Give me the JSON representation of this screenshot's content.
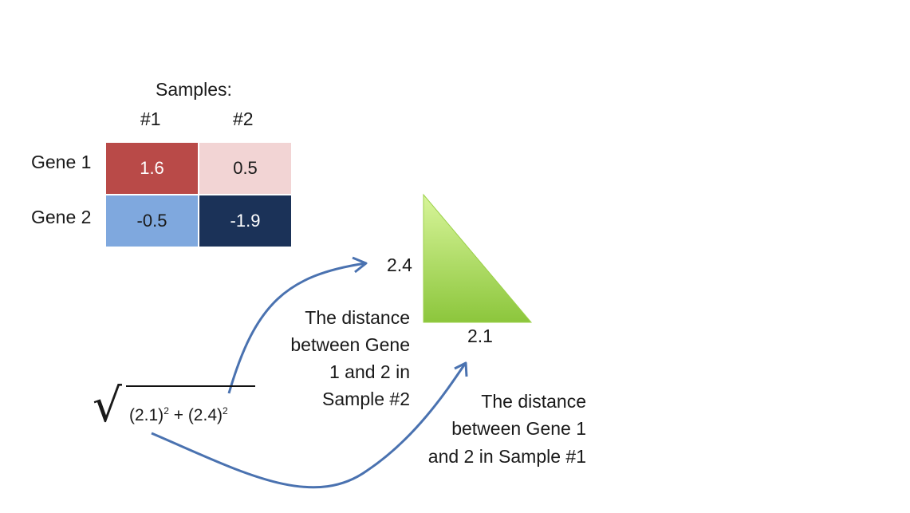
{
  "table": {
    "samples_label": "Samples:",
    "columns": [
      "#1",
      "#2"
    ],
    "rows": [
      {
        "label": "Gene 1",
        "values": [
          "1.6",
          "0.5"
        ]
      },
      {
        "label": "Gene 2",
        "values": [
          "-0.5",
          "-1.9"
        ]
      }
    ],
    "cell_colors": [
      [
        "#b94a48",
        "#f2d4d4"
      ],
      [
        "#7fa8de",
        "#1b3258"
      ]
    ]
  },
  "triangle": {
    "vertical_side_label": "2.4",
    "horizontal_side_label": "2.1",
    "fill_top": "#d8f59a",
    "fill_bottom": "#8cc63c"
  },
  "formula": {
    "term1": "(2.1)",
    "exp1": "2",
    "plus": " + ",
    "term2": "(2.4)",
    "exp2": "2"
  },
  "annotations": {
    "sample2": [
      "The distance",
      "between Gene",
      "1 and 2 in",
      "Sample #2"
    ],
    "sample1": [
      "The distance",
      "between Gene 1",
      "and 2 in Sample #1"
    ]
  },
  "arrow_color": "#4a72b0"
}
